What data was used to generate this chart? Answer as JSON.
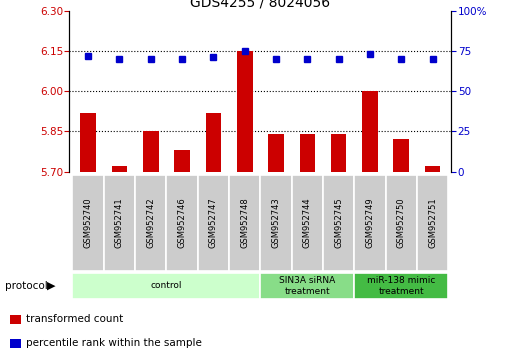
{
  "title": "GDS4255 / 8024056",
  "samples": [
    "GSM952740",
    "GSM952741",
    "GSM952742",
    "GSM952746",
    "GSM952747",
    "GSM952748",
    "GSM952743",
    "GSM952744",
    "GSM952745",
    "GSM952749",
    "GSM952750",
    "GSM952751"
  ],
  "red_values": [
    5.92,
    5.72,
    5.85,
    5.78,
    5.92,
    6.15,
    5.84,
    5.84,
    5.84,
    6.0,
    5.82,
    5.72
  ],
  "blue_values": [
    72,
    70,
    70,
    70,
    71,
    75,
    70,
    70,
    70,
    73,
    70,
    70
  ],
  "ylim_left": [
    5.7,
    6.3
  ],
  "ylim_right": [
    0,
    100
  ],
  "yticks_left": [
    5.7,
    5.85,
    6.0,
    6.15,
    6.3
  ],
  "yticks_right": [
    0,
    25,
    50,
    75,
    100
  ],
  "hlines": [
    5.85,
    6.0,
    6.15
  ],
  "bar_color": "#cc0000",
  "dot_color": "#0000cc",
  "bar_bottom": 5.7,
  "protocol_groups": [
    {
      "label": "control",
      "start": 0,
      "end": 5,
      "color": "#ccffcc"
    },
    {
      "label": "SIN3A siRNA\ntreatment",
      "start": 6,
      "end": 8,
      "color": "#88dd88"
    },
    {
      "label": "miR-138 mimic\ntreatment",
      "start": 9,
      "end": 11,
      "color": "#44bb44"
    }
  ],
  "legend_items": [
    {
      "label": "transformed count",
      "color": "#cc0000"
    },
    {
      "label": "percentile rank within the sample",
      "color": "#0000cc"
    }
  ],
  "title_fontsize": 10,
  "tick_fontsize": 7.5,
  "label_fontsize": 7.5
}
